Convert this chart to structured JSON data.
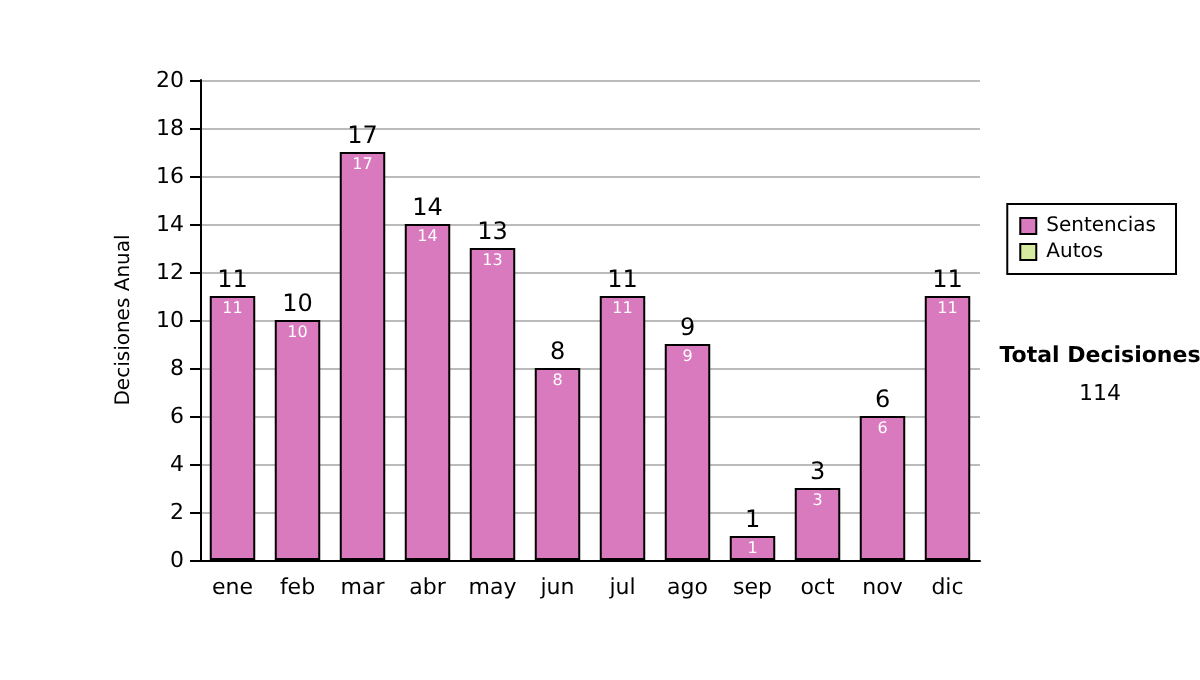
{
  "chart_data": {
    "type": "bar",
    "ylabel": "Decisiones Anual",
    "categories": [
      "ene",
      "feb",
      "mar",
      "abr",
      "may",
      "jun",
      "jul",
      "ago",
      "sep",
      "oct",
      "nov",
      "dic"
    ],
    "series": [
      {
        "name": "Sentencias",
        "color": "#d97abf",
        "values": [
          11,
          10,
          17,
          14,
          13,
          8,
          11,
          9,
          1,
          3,
          6,
          11
        ]
      },
      {
        "name": "Autos",
        "color": "#d6eaa0",
        "values": [
          null,
          null,
          null,
          null,
          null,
          null,
          null,
          null,
          null,
          null,
          null,
          null
        ]
      }
    ],
    "stacked": true,
    "data_labels": true,
    "totals": [
      "11",
      "10",
      "17",
      "14",
      "13",
      "8",
      "11",
      "9",
      "1",
      "3",
      "6",
      "11"
    ],
    "ylim": [
      0,
      20
    ],
    "yticks": [
      0,
      2,
      4,
      6,
      8,
      10,
      12,
      14,
      16,
      18,
      20
    ],
    "grid": "y",
    "legend": "right",
    "annotations": [
      "Total Decisiones",
      "114"
    ]
  }
}
